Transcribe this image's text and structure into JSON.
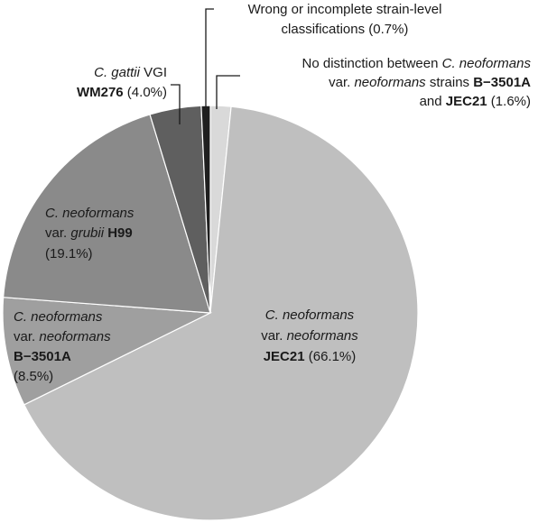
{
  "chart_data": {
    "type": "pie",
    "title": "",
    "start_angle_deg": 0,
    "direction": "clockwise",
    "slices": [
      {
        "value": 1.6,
        "color": "#d9d9d9",
        "label": {
          "l1": {
            "a": "No distinction between ",
            "b": "C. neoformans"
          },
          "l2": {
            "a": "var. ",
            "b": "neoformans",
            "c": " strains ",
            "d": "B−3501A"
          },
          "l3": {
            "a": "and ",
            "b": "JEC21",
            "c": " (1.6%)"
          }
        }
      },
      {
        "value": 66.1,
        "color": "#bfbfbf",
        "label": {
          "l1": {
            "a": "C. neoformans"
          },
          "l2": {
            "a": "var. ",
            "b": "neoformans"
          },
          "l3": {
            "a": "JEC21",
            "b": " (66.1%)"
          }
        }
      },
      {
        "value": 8.5,
        "color": "#9f9f9f",
        "label": {
          "l1": {
            "a": "C. neoformans"
          },
          "l2": {
            "a": "var. ",
            "b": "neoformans"
          },
          "l3": {
            "a": "B−3501A"
          },
          "l4": {
            "a": "(8.5%)"
          }
        }
      },
      {
        "value": 19.1,
        "color": "#8a8a8a",
        "label": {
          "l1": {
            "a": "C. neoformans"
          },
          "l2": {
            "a": "var. ",
            "b": "grubii",
            "c": " ",
            "d": "H99"
          },
          "l3": {
            "a": "(19.1%)"
          }
        }
      },
      {
        "value": 4.0,
        "color": "#5f5f5f",
        "label": {
          "l1": {
            "a": "C. gattii",
            "b": " VGI"
          },
          "l2": {
            "a": "WM276",
            "b": " (4.0%)"
          }
        }
      },
      {
        "value": 0.7,
        "color": "#1f1f1f",
        "label": {
          "l1": {
            "a": "Wrong or incomplete strain-level"
          },
          "l2": {
            "a": "classifications (0.7%)"
          }
        }
      }
    ]
  }
}
